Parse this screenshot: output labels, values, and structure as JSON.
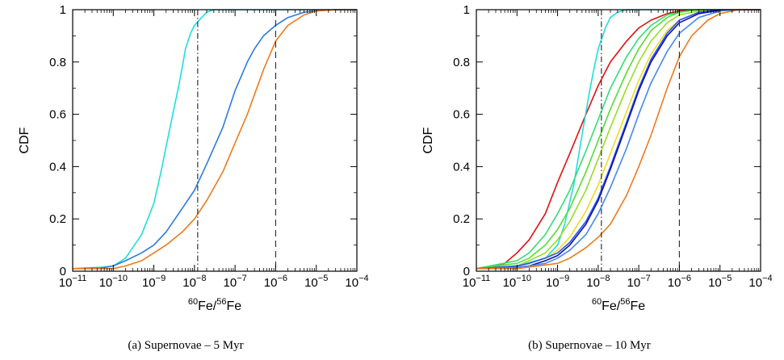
{
  "chart_data": [
    {
      "type": "line",
      "caption": "(a) Supernovae – 5 Myr",
      "ylabel": "CDF",
      "xlabel": {
        "iso1": "60",
        "el1": "Fe/",
        "iso2": "56",
        "el2": "Fe"
      },
      "x_scale": "log",
      "xlim": [
        1e-11,
        0.0001
      ],
      "ylim": [
        0,
        1
      ],
      "x_ticks": [
        {
          "value": 1e-11,
          "base": "10",
          "exp": "−11"
        },
        {
          "value": 1e-10,
          "base": "10",
          "exp": "−10"
        },
        {
          "value": 1e-09,
          "base": "10",
          "exp": "−9"
        },
        {
          "value": 1e-08,
          "base": "10",
          "exp": "−8"
        },
        {
          "value": 1e-07,
          "base": "10",
          "exp": "−7"
        },
        {
          "value": 1e-06,
          "base": "10",
          "exp": "−6"
        },
        {
          "value": 1e-05,
          "base": "10",
          "exp": "−5"
        },
        {
          "value": 0.0001,
          "base": "10",
          "exp": "−4"
        }
      ],
      "y_ticks": [
        {
          "value": 0,
          "label": "0"
        },
        {
          "value": 0.2,
          "label": "0.2"
        },
        {
          "value": 0.4,
          "label": "0.4"
        },
        {
          "value": 0.6,
          "label": "0.6"
        },
        {
          "value": 0.8,
          "label": "0.8"
        },
        {
          "value": 1,
          "label": "1"
        }
      ],
      "reference_lines": [
        {
          "x": 1.2e-08,
          "style": "dashdot"
        },
        {
          "x": 1e-06,
          "style": "dashed"
        }
      ],
      "series": [
        {
          "color": "#22dddd",
          "x": [
            1e-11,
            2e-11,
            5e-11,
            1e-10,
            2e-10,
            5e-10,
            1e-09,
            1.5e-09,
            2.5e-09,
            4e-09,
            5e-09,
            6e-09,
            8e-09,
            1e-08,
            1.5e-08,
            2e-08,
            3e-08,
            1e-07,
            0.0001
          ],
          "y": [
            0.01,
            0.012,
            0.015,
            0.02,
            0.05,
            0.14,
            0.26,
            0.38,
            0.55,
            0.7,
            0.78,
            0.85,
            0.91,
            0.94,
            0.97,
            0.99,
            1.0,
            1.0,
            1.0
          ]
        },
        {
          "color": "#2a7be0",
          "x": [
            1e-11,
            5e-11,
            1e-10,
            2e-10,
            5e-10,
            1e-09,
            2e-09,
            5e-09,
            1e-08,
            2e-08,
            5e-08,
            1e-07,
            2e-07,
            3e-07,
            5e-07,
            1e-06,
            2e-06,
            5e-06,
            1e-05,
            3e-05,
            0.0001
          ],
          "y": [
            0.01,
            0.012,
            0.02,
            0.04,
            0.07,
            0.1,
            0.15,
            0.24,
            0.31,
            0.41,
            0.55,
            0.69,
            0.8,
            0.85,
            0.9,
            0.94,
            0.97,
            0.99,
            0.995,
            1.0,
            1.0
          ]
        },
        {
          "color": "#ee7a1a",
          "x": [
            1e-11,
            1e-10,
            2e-10,
            5e-10,
            1e-09,
            2e-09,
            5e-09,
            1e-08,
            2e-08,
            5e-08,
            1e-07,
            2e-07,
            5e-07,
            1e-06,
            2e-06,
            5e-06,
            1e-05,
            3e-05,
            0.0001
          ],
          "y": [
            0.01,
            0.01,
            0.02,
            0.04,
            0.07,
            0.1,
            0.15,
            0.2,
            0.27,
            0.38,
            0.49,
            0.6,
            0.77,
            0.88,
            0.94,
            0.98,
            0.995,
            1.0,
            1.0
          ]
        }
      ]
    },
    {
      "type": "line",
      "caption": "(b) Supernovae – 10 Myr",
      "ylabel": "CDF",
      "xlabel": {
        "iso1": "60",
        "el1": "Fe/",
        "iso2": "56",
        "el2": "Fe"
      },
      "x_scale": "log",
      "xlim": [
        1e-11,
        0.0001
      ],
      "ylim": [
        0,
        1
      ],
      "x_ticks": [
        {
          "value": 1e-11,
          "base": "10",
          "exp": "−11"
        },
        {
          "value": 1e-10,
          "base": "10",
          "exp": "−10"
        },
        {
          "value": 1e-09,
          "base": "10",
          "exp": "−9"
        },
        {
          "value": 1e-08,
          "base": "10",
          "exp": "−8"
        },
        {
          "value": 1e-07,
          "base": "10",
          "exp": "−7"
        },
        {
          "value": 1e-06,
          "base": "10",
          "exp": "−6"
        },
        {
          "value": 1e-05,
          "base": "10",
          "exp": "−5"
        },
        {
          "value": 0.0001,
          "base": "10",
          "exp": "−4"
        }
      ],
      "y_ticks": [
        {
          "value": 0,
          "label": "0"
        },
        {
          "value": 0.2,
          "label": "0.2"
        },
        {
          "value": 0.4,
          "label": "0.4"
        },
        {
          "value": 0.6,
          "label": "0.6"
        },
        {
          "value": 0.8,
          "label": "0.8"
        },
        {
          "value": 1,
          "label": "1"
        }
      ],
      "reference_lines": [
        {
          "x": 1.2e-08,
          "style": "dashdot"
        },
        {
          "x": 1e-06,
          "style": "dashed"
        }
      ],
      "series": [
        {
          "color": "#dd1111",
          "x": [
            1e-11,
            5e-11,
            1e-10,
            2e-10,
            5e-10,
            1e-09,
            2e-09,
            5e-09,
            1e-08,
            2e-08,
            5e-08,
            1e-07,
            2e-07,
            5e-07,
            1e-06,
            3e-06,
            1e-05,
            0.0001
          ],
          "y": [
            0.01,
            0.03,
            0.07,
            0.12,
            0.22,
            0.34,
            0.45,
            0.6,
            0.71,
            0.8,
            0.88,
            0.93,
            0.96,
            0.985,
            0.995,
            1.0,
            1.0,
            1.0
          ]
        },
        {
          "color": "#22dddd",
          "x": [
            1e-11,
            1e-10,
            5e-10,
            1e-09,
            1.5e-09,
            2.5e-09,
            4e-09,
            6e-09,
            8e-09,
            1e-08,
            1.5e-08,
            2e-08,
            3e-08,
            5e-08,
            1e-07,
            0.0001
          ],
          "y": [
            0.01,
            0.02,
            0.05,
            0.1,
            0.18,
            0.33,
            0.52,
            0.68,
            0.78,
            0.85,
            0.93,
            0.97,
            0.99,
            1.0,
            1.0,
            1.0
          ]
        },
        {
          "color": "#33dd77",
          "x": [
            1e-11,
            1e-10,
            2e-10,
            5e-10,
            1e-09,
            2e-09,
            5e-09,
            1e-08,
            2e-08,
            5e-08,
            1e-07,
            2e-07,
            5e-07,
            1e-06,
            3e-06,
            1e-05,
            0.0001
          ],
          "y": [
            0.01,
            0.04,
            0.07,
            0.14,
            0.22,
            0.31,
            0.46,
            0.58,
            0.7,
            0.82,
            0.89,
            0.94,
            0.98,
            0.99,
            1.0,
            1.0,
            1.0
          ]
        },
        {
          "color": "#55dd33",
          "x": [
            1e-11,
            1e-10,
            2e-10,
            5e-10,
            1e-09,
            2e-09,
            5e-09,
            1e-08,
            2e-08,
            5e-08,
            1e-07,
            2e-07,
            5e-07,
            1e-06,
            3e-06,
            1e-05,
            0.0001
          ],
          "y": [
            0.01,
            0.03,
            0.05,
            0.1,
            0.16,
            0.24,
            0.38,
            0.5,
            0.62,
            0.76,
            0.85,
            0.92,
            0.97,
            0.99,
            1.0,
            1.0,
            1.0
          ]
        },
        {
          "color": "#99dd22",
          "x": [
            1e-11,
            1e-10,
            2e-10,
            5e-10,
            1e-09,
            2e-09,
            5e-09,
            1e-08,
            2e-08,
            5e-08,
            1e-07,
            2e-07,
            5e-07,
            1e-06,
            3e-06,
            1e-05,
            0.0001
          ],
          "y": [
            0.01,
            0.02,
            0.04,
            0.07,
            0.12,
            0.19,
            0.31,
            0.43,
            0.55,
            0.7,
            0.8,
            0.88,
            0.95,
            0.98,
            0.995,
            1.0,
            1.0
          ]
        },
        {
          "color": "#eedd22",
          "x": [
            1e-11,
            1e-10,
            2e-10,
            5e-10,
            1e-09,
            2e-09,
            5e-09,
            1e-08,
            2e-08,
            5e-08,
            1e-07,
            2e-07,
            5e-07,
            1e-06,
            3e-06,
            1e-05,
            0.0001
          ],
          "y": [
            0.01,
            0.02,
            0.03,
            0.05,
            0.08,
            0.13,
            0.23,
            0.33,
            0.45,
            0.61,
            0.73,
            0.83,
            0.92,
            0.96,
            0.99,
            1.0,
            1.0
          ]
        },
        {
          "color": "#2255ee",
          "x": [
            1e-11,
            1e-10,
            2e-10,
            5e-10,
            1e-09,
            2e-09,
            5e-09,
            1e-08,
            2e-08,
            5e-08,
            1e-07,
            2e-07,
            5e-07,
            1e-06,
            3e-06,
            1e-05,
            0.0001
          ],
          "y": [
            0.01,
            0.02,
            0.03,
            0.05,
            0.07,
            0.11,
            0.19,
            0.28,
            0.4,
            0.57,
            0.7,
            0.81,
            0.91,
            0.96,
            0.99,
            1.0,
            1.0
          ]
        },
        {
          "color": "#1111aa",
          "x": [
            1e-11,
            1e-10,
            2e-10,
            5e-10,
            1e-09,
            2e-09,
            5e-09,
            1e-08,
            2e-08,
            5e-08,
            1e-07,
            2e-07,
            5e-07,
            1e-06,
            3e-06,
            1e-05,
            0.0001
          ],
          "y": [
            0.01,
            0.015,
            0.02,
            0.04,
            0.06,
            0.1,
            0.18,
            0.27,
            0.39,
            0.56,
            0.69,
            0.8,
            0.9,
            0.95,
            0.985,
            0.998,
            1.0
          ]
        },
        {
          "color": "#4488ee",
          "x": [
            1e-11,
            1e-10,
            2e-10,
            5e-10,
            1e-09,
            2e-09,
            5e-09,
            1e-08,
            2e-08,
            5e-08,
            1e-07,
            2e-07,
            5e-07,
            1e-06,
            3e-06,
            1e-05,
            3e-05,
            0.0001
          ],
          "y": [
            0.01,
            0.015,
            0.02,
            0.03,
            0.05,
            0.08,
            0.14,
            0.22,
            0.32,
            0.47,
            0.6,
            0.72,
            0.84,
            0.91,
            0.97,
            0.995,
            1.0,
            1.0
          ]
        },
        {
          "color": "#ee7a1a",
          "x": [
            1e-11,
            1e-10,
            1e-09,
            2e-09,
            5e-09,
            1e-08,
            2e-08,
            5e-08,
            1e-07,
            2e-07,
            5e-07,
            1e-06,
            2e-06,
            5e-06,
            1e-05,
            3e-05,
            0.0001
          ],
          "y": [
            0.01,
            0.01,
            0.03,
            0.05,
            0.09,
            0.13,
            0.18,
            0.29,
            0.4,
            0.52,
            0.7,
            0.82,
            0.9,
            0.96,
            0.985,
            1.0,
            1.0
          ]
        }
      ]
    }
  ]
}
